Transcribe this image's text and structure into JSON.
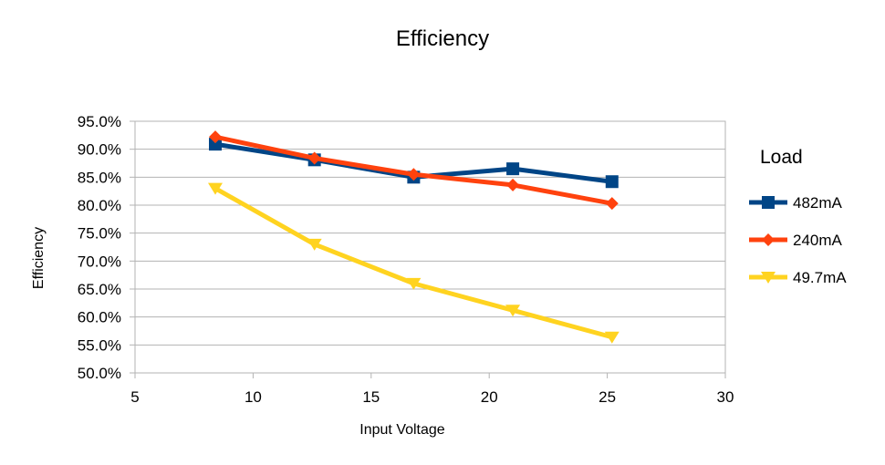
{
  "chart_data": {
    "type": "line",
    "title": "Efficiency",
    "xlabel": "Input Voltage",
    "ylabel": "Efficiency",
    "xlim": [
      5,
      30
    ],
    "ylim": [
      50,
      95
    ],
    "x_ticks": [
      "5",
      "10",
      "15",
      "20",
      "25",
      "30"
    ],
    "y_ticks": [
      "50.0%",
      "55.0%",
      "60.0%",
      "65.0%",
      "70.0%",
      "75.0%",
      "80.0%",
      "85.0%",
      "90.0%",
      "95.0%"
    ],
    "grid": "horizontal",
    "legend": {
      "title": "Load",
      "placement": "right"
    },
    "series": [
      {
        "name": "482mA",
        "color": "#004586",
        "marker": "square",
        "points": [
          {
            "x": 8.4,
            "y": 90.9
          },
          {
            "x": 12.6,
            "y": 88.1
          },
          {
            "x": 16.8,
            "y": 85.0
          },
          {
            "x": 21.0,
            "y": 86.5
          },
          {
            "x": 25.2,
            "y": 84.2
          }
        ]
      },
      {
        "name": "240mA",
        "color": "#ff420e",
        "marker": "diamond",
        "points": [
          {
            "x": 8.4,
            "y": 92.2
          },
          {
            "x": 12.6,
            "y": 88.4
          },
          {
            "x": 16.8,
            "y": 85.5
          },
          {
            "x": 21.0,
            "y": 83.6
          },
          {
            "x": 25.2,
            "y": 80.3
          }
        ]
      },
      {
        "name": "49.7mA",
        "color": "#ffd320",
        "marker": "triangle-down",
        "points": [
          {
            "x": 8.4,
            "y": 83.0
          },
          {
            "x": 12.6,
            "y": 73.0
          },
          {
            "x": 16.8,
            "y": 66.0
          },
          {
            "x": 21.0,
            "y": 61.2
          },
          {
            "x": 25.2,
            "y": 56.4
          }
        ]
      }
    ]
  }
}
